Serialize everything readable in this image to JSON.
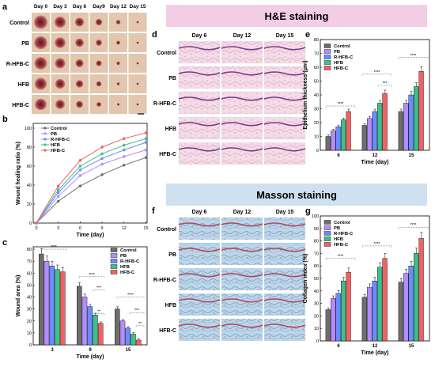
{
  "panels": {
    "a": "a",
    "b": "b",
    "c": "c",
    "d": "d",
    "e": "e",
    "f": "f",
    "g": "g"
  },
  "photo_grid": {
    "days": [
      "Day 0",
      "Day 3",
      "Day 6",
      "Day9",
      "Day 12",
      "Day 15"
    ],
    "groups": [
      "Control",
      "PB",
      "R-HFB-C",
      "HFB",
      "HFB-C"
    ]
  },
  "he_banner": "H&E staining",
  "masson_banner": "Masson staining",
  "histo_days": [
    "Day 6",
    "Day 12",
    "Day 15"
  ],
  "histo_groups": [
    "Control",
    "PB",
    "R-HFB-C",
    "HFB",
    "HFB-C"
  ],
  "colors": {
    "Control": "#6e6e6e",
    "PB": "#b38cff",
    "R-HFB-C": "#6a8cff",
    "HFB": "#3fbf8a",
    "HFB-C": "#f06262"
  },
  "chart_data": [
    {
      "panel": "b",
      "type": "line",
      "xlabel": "Time (day)",
      "ylabel": "Wound healing ratio (%)",
      "x": [
        0,
        3,
        6,
        9,
        12,
        15
      ],
      "xlim": [
        0,
        15.6
      ],
      "ylim": [
        0,
        105
      ],
      "yticks": [
        0,
        20,
        40,
        60,
        80,
        100
      ],
      "xticks": [
        0,
        3,
        6,
        9,
        12,
        15
      ],
      "series": [
        {
          "name": "Control",
          "values": [
            0,
            23,
            39,
            51,
            61,
            69
          ]
        },
        {
          "name": "PB",
          "values": [
            0,
            28,
            50,
            62,
            70,
            77
          ]
        },
        {
          "name": "R-HFB-C",
          "values": [
            0,
            32,
            56,
            68,
            77,
            85
          ]
        },
        {
          "name": "HFB",
          "values": [
            0,
            35,
            60,
            73,
            82,
            89
          ]
        },
        {
          "name": "HFB-C",
          "values": [
            0,
            39,
            66,
            80,
            89,
            95
          ]
        }
      ],
      "legend": "top-left"
    },
    {
      "panel": "c",
      "type": "bar",
      "xlabel": "Time (day)",
      "ylabel": "Wound area (%)",
      "categories": [
        "3",
        "9",
        "15"
      ],
      "ylim": [
        0,
        82
      ],
      "yticks": [
        0,
        10,
        20,
        30,
        40,
        50,
        60,
        70,
        80
      ],
      "series": [
        {
          "name": "Control",
          "values": [
            76,
            49,
            30
          ]
        },
        {
          "name": "PB",
          "values": [
            70,
            40,
            20
          ]
        },
        {
          "name": "R-HFB-C",
          "values": [
            66,
            32,
            14
          ]
        },
        {
          "name": "HFB",
          "values": [
            63,
            25,
            9
          ]
        },
        {
          "name": "HFB-C",
          "values": [
            61,
            18,
            4
          ]
        }
      ],
      "significance": [
        "****",
        "****",
        "***",
        "**",
        "****",
        "***",
        "**"
      ],
      "legend": "top-right"
    },
    {
      "panel": "e",
      "type": "bar",
      "xlabel": "Time (day)",
      "ylabel": "Epithelium thickness (μm)",
      "categories": [
        "6",
        "12",
        "15"
      ],
      "ylim": [
        0,
        80
      ],
      "yticks": [
        0,
        10,
        20,
        30,
        40,
        50,
        60,
        70,
        80
      ],
      "series": [
        {
          "name": "Control",
          "values": [
            10,
            18,
            28
          ]
        },
        {
          "name": "PB",
          "values": [
            14,
            23,
            34
          ]
        },
        {
          "name": "R-HFB-C",
          "values": [
            17,
            28,
            40
          ]
        },
        {
          "name": "HFB",
          "values": [
            22,
            34,
            46
          ]
        },
        {
          "name": "HFB-C",
          "values": [
            28,
            41,
            57
          ]
        }
      ],
      "significance": [
        "****",
        "****",
        "***",
        "****"
      ],
      "legend": "top-left"
    },
    {
      "panel": "g",
      "type": "bar",
      "xlabel": "Time (day)",
      "ylabel": "Collagen index (%)",
      "categories": [
        "6",
        "12",
        "15"
      ],
      "ylim": [
        0,
        100
      ],
      "yticks": [
        0,
        10,
        20,
        30,
        40,
        50,
        60,
        70,
        80,
        90,
        100
      ],
      "series": [
        {
          "name": "Control",
          "values": [
            25,
            35,
            47
          ]
        },
        {
          "name": "PB",
          "values": [
            34,
            43,
            54
          ]
        },
        {
          "name": "R-HFB-C",
          "values": [
            38,
            48,
            60
          ]
        },
        {
          "name": "HFB",
          "values": [
            48,
            59,
            70
          ]
        },
        {
          "name": "HFB-C",
          "values": [
            55,
            66,
            82
          ]
        }
      ],
      "significance": [
        "****",
        "****",
        "****"
      ],
      "legend": "top-left"
    }
  ]
}
